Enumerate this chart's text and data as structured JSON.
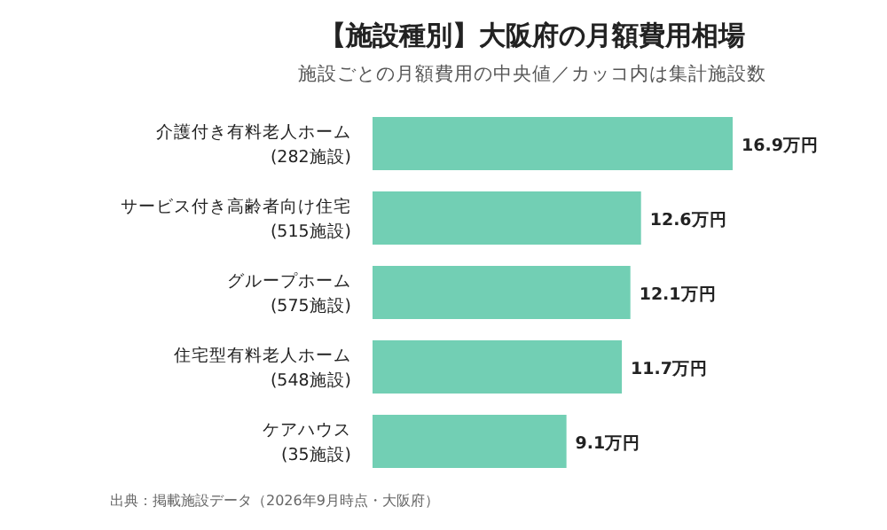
{
  "chart_data": {
    "type": "bar",
    "orientation": "horizontal",
    "title": "【施設種別】大阪府の月額費用相場",
    "subtitle": "施設ごとの月額費用の中央値／カッコ内は集計施設数",
    "categories": [
      "介護付き有料老人ホーム\n(282施設)",
      "サービス付き高齢者向け住宅\n(515施設)",
      "グループホーム\n(575施設)",
      "住宅型有料老人ホーム\n(548施設)",
      "ケアハウス\n(35施設)"
    ],
    "values": [
      16.9,
      12.6,
      12.1,
      11.7,
      9.1
    ],
    "value_labels": [
      "16.9万円",
      "12.6万円",
      "12.1万円",
      "11.7万円",
      "9.1万円"
    ],
    "color": "#72cfb4",
    "xlim": [
      0,
      16.9
    ],
    "tick_labels": false,
    "annotations": [
      "出典：掲載施設データ（2026年9月時点・大阪府）"
    ]
  }
}
